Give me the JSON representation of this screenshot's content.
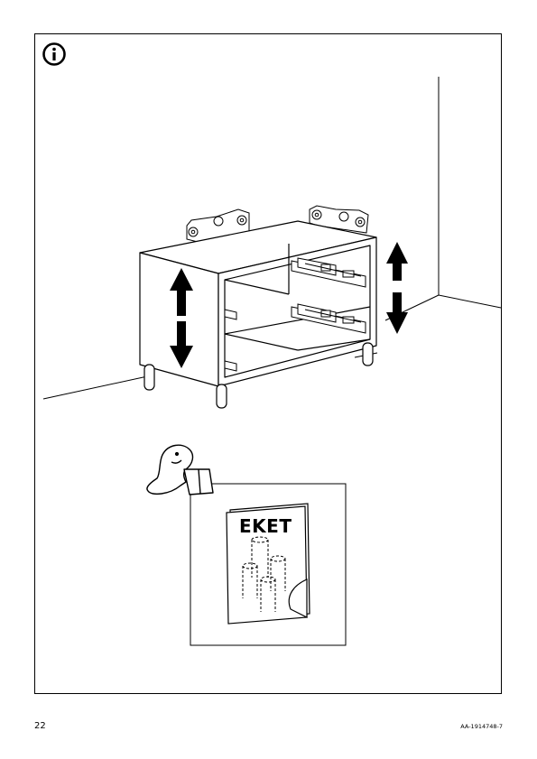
{
  "page": {
    "page_number": "22",
    "document_code": "AA-1914748-7"
  },
  "booklet": {
    "title": "EKET"
  },
  "icons": {
    "info": "info-icon",
    "reader": "person-reading-icon",
    "arrow_left": "double-arrow-vertical-icon",
    "arrow_right": "double-arrow-vertical-icon"
  }
}
